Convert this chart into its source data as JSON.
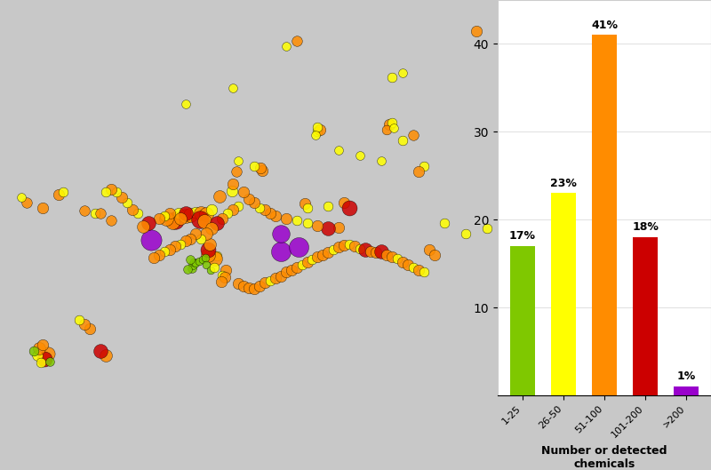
{
  "bar_categories": [
    "1-25",
    "26-50",
    "51-100",
    "101-200",
    ">200"
  ],
  "bar_values": [
    17,
    23,
    41,
    18,
    1
  ],
  "bar_colors": [
    "#7fc800",
    "#ffff00",
    "#ff8c00",
    "#cc0000",
    "#9900cc"
  ],
  "bar_labels": [
    "17%",
    "23%",
    "41%",
    "18%",
    "1%"
  ],
  "circle_colors": [
    "#7fc800",
    "#ffff00",
    "#ff8c00",
    "#cc0000",
    "#9900cc"
  ],
  "circle_sizes": [
    40,
    80,
    130,
    200,
    280
  ],
  "xlabel": "Number or detected\nchemicals",
  "background_color": "#c8c8c8",
  "map_bg": "#c8c8c8",
  "land_color": "#ffffff",
  "border_color": "#aaaaaa",
  "sampling_points": [
    {
      "lon": 2.3,
      "lat": 48.9,
      "color": "#9900cc",
      "size": 280
    },
    {
      "lon": 4.5,
      "lat": 50.8,
      "color": "#cc0000",
      "size": 200
    },
    {
      "lon": 4.3,
      "lat": 50.6,
      "color": "#ff8c00",
      "size": 130
    },
    {
      "lon": 3.7,
      "lat": 51.0,
      "color": "#ff8c00",
      "size": 130
    },
    {
      "lon": 4.9,
      "lat": 51.5,
      "color": "#ffff00",
      "size": 80
    },
    {
      "lon": 5.5,
      "lat": 51.2,
      "color": "#ff8c00",
      "size": 130
    },
    {
      "lon": 6.0,
      "lat": 51.3,
      "color": "#ff8c00",
      "size": 130
    },
    {
      "lon": 6.5,
      "lat": 51.6,
      "color": "#ffff00",
      "size": 80
    },
    {
      "lon": 7.0,
      "lat": 51.5,
      "color": "#ff8c00",
      "size": 130
    },
    {
      "lon": 7.5,
      "lat": 51.4,
      "color": "#ff8c00",
      "size": 130
    },
    {
      "lon": 8.0,
      "lat": 51.8,
      "color": "#ffff00",
      "size": 80
    },
    {
      "lon": 6.9,
      "lat": 50.9,
      "color": "#cc0000",
      "size": 200
    },
    {
      "lon": 7.3,
      "lat": 50.7,
      "color": "#ff8c00",
      "size": 130
    },
    {
      "lon": 8.7,
      "lat": 53.1,
      "color": "#ff8c00",
      "size": 100
    },
    {
      "lon": 9.9,
      "lat": 53.6,
      "color": "#ffff00",
      "size": 80
    },
    {
      "lon": 10.0,
      "lat": 54.3,
      "color": "#ff8c00",
      "size": 80
    },
    {
      "lon": 8.5,
      "lat": 47.4,
      "color": "#ffff00",
      "size": 60
    },
    {
      "lon": 8.3,
      "lat": 47.1,
      "color": "#ff8c00",
      "size": 130
    },
    {
      "lon": 7.6,
      "lat": 47.5,
      "color": "#ff8c00",
      "size": 130
    },
    {
      "lon": 7.6,
      "lat": 48.0,
      "color": "#cc0000",
      "size": 150
    },
    {
      "lon": 7.8,
      "lat": 48.5,
      "color": "#ff8c00",
      "size": 100
    },
    {
      "lon": 6.1,
      "lat": 46.2,
      "color": "#7fc800",
      "size": 50
    },
    {
      "lon": 6.2,
      "lat": 46.5,
      "color": "#7fc800",
      "size": 50
    },
    {
      "lon": 6.3,
      "lat": 46.8,
      "color": "#7fc800",
      "size": 40
    },
    {
      "lon": 6.5,
      "lat": 46.7,
      "color": "#7fc800",
      "size": 40
    },
    {
      "lon": 6.8,
      "lat": 46.9,
      "color": "#7fc800",
      "size": 40
    },
    {
      "lon": 7.1,
      "lat": 47.0,
      "color": "#7fc800",
      "size": 40
    },
    {
      "lon": 7.4,
      "lat": 47.2,
      "color": "#7fc800",
      "size": 40
    },
    {
      "lon": 6.0,
      "lat": 47.0,
      "color": "#7fc800",
      "size": 50
    },
    {
      "lon": 5.7,
      "lat": 46.1,
      "color": "#7fc800",
      "size": 50
    },
    {
      "lon": 7.5,
      "lat": 46.5,
      "color": "#7fc800",
      "size": 40
    },
    {
      "lon": 7.9,
      "lat": 46.0,
      "color": "#7fc800",
      "size": 40
    },
    {
      "lon": 8.2,
      "lat": 46.3,
      "color": "#ffff00",
      "size": 60
    },
    {
      "lon": 9.3,
      "lat": 46.0,
      "color": "#ff8c00",
      "size": 80
    },
    {
      "lon": 9.0,
      "lat": 45.5,
      "color": "#ffff00",
      "size": 60
    },
    {
      "lon": 9.2,
      "lat": 45.3,
      "color": "#ff8c00",
      "size": 80
    },
    {
      "lon": 8.9,
      "lat": 44.9,
      "color": "#ff8c00",
      "size": 80
    },
    {
      "lon": 10.5,
      "lat": 44.7,
      "color": "#ff8c00",
      "size": 80
    },
    {
      "lon": 11.0,
      "lat": 44.5,
      "color": "#ff8c00",
      "size": 80
    },
    {
      "lon": 11.5,
      "lat": 44.3,
      "color": "#ff8c00",
      "size": 80
    },
    {
      "lon": 12.0,
      "lat": 44.2,
      "color": "#ff8c00",
      "size": 80
    },
    {
      "lon": 12.5,
      "lat": 44.5,
      "color": "#ff8c00",
      "size": 80
    },
    {
      "lon": 13.0,
      "lat": 44.8,
      "color": "#ff8c00",
      "size": 80
    },
    {
      "lon": 13.5,
      "lat": 45.0,
      "color": "#ffff00",
      "size": 60
    },
    {
      "lon": 14.0,
      "lat": 45.2,
      "color": "#ff8c00",
      "size": 80
    },
    {
      "lon": 14.5,
      "lat": 45.4,
      "color": "#ff8c00",
      "size": 80
    },
    {
      "lon": 15.0,
      "lat": 45.8,
      "color": "#ff8c00",
      "size": 80
    },
    {
      "lon": 15.5,
      "lat": 46.0,
      "color": "#ff8c00",
      "size": 80
    },
    {
      "lon": 16.0,
      "lat": 46.3,
      "color": "#ff8c00",
      "size": 80
    },
    {
      "lon": 16.5,
      "lat": 46.5,
      "color": "#ffff00",
      "size": 60
    },
    {
      "lon": 17.0,
      "lat": 46.8,
      "color": "#ff8c00",
      "size": 80
    },
    {
      "lon": 17.5,
      "lat": 47.0,
      "color": "#ffff00",
      "size": 60
    },
    {
      "lon": 18.0,
      "lat": 47.3,
      "color": "#ff8c00",
      "size": 80
    },
    {
      "lon": 18.5,
      "lat": 47.5,
      "color": "#ff8c00",
      "size": 80
    },
    {
      "lon": 19.0,
      "lat": 47.7,
      "color": "#ff8c00",
      "size": 80
    },
    {
      "lon": 19.5,
      "lat": 48.0,
      "color": "#ffff00",
      "size": 60
    },
    {
      "lon": 20.0,
      "lat": 48.2,
      "color": "#ff8c00",
      "size": 80
    },
    {
      "lon": 20.5,
      "lat": 48.4,
      "color": "#ff8c00",
      "size": 80
    },
    {
      "lon": 21.0,
      "lat": 48.5,
      "color": "#ffff00",
      "size": 60
    },
    {
      "lon": 21.5,
      "lat": 48.3,
      "color": "#ff8c00",
      "size": 80
    },
    {
      "lon": 22.0,
      "lat": 48.1,
      "color": "#ffff00",
      "size": 60
    },
    {
      "lon": 22.5,
      "lat": 48.0,
      "color": "#cc0000",
      "size": 130
    },
    {
      "lon": 23.0,
      "lat": 47.8,
      "color": "#ff8c00",
      "size": 80
    },
    {
      "lon": 23.5,
      "lat": 47.7,
      "color": "#ff8c00",
      "size": 80
    },
    {
      "lon": 24.0,
      "lat": 47.8,
      "color": "#cc0000",
      "size": 130
    },
    {
      "lon": 24.5,
      "lat": 47.5,
      "color": "#ff8c00",
      "size": 80
    },
    {
      "lon": 25.0,
      "lat": 47.3,
      "color": "#ff8c00",
      "size": 80
    },
    {
      "lon": 25.5,
      "lat": 47.1,
      "color": "#ffff00",
      "size": 60
    },
    {
      "lon": 26.0,
      "lat": 46.8,
      "color": "#ff8c00",
      "size": 80
    },
    {
      "lon": 26.5,
      "lat": 46.5,
      "color": "#ff8c00",
      "size": 80
    },
    {
      "lon": 27.0,
      "lat": 46.3,
      "color": "#ffff00",
      "size": 60
    },
    {
      "lon": 27.5,
      "lat": 46.0,
      "color": "#ff8c00",
      "size": 80
    },
    {
      "lon": 28.0,
      "lat": 45.8,
      "color": "#ffff00",
      "size": 60
    },
    {
      "lon": 14.5,
      "lat": 47.8,
      "color": "#9900cc",
      "size": 250
    },
    {
      "lon": 16.2,
      "lat": 48.2,
      "color": "#9900cc",
      "size": 250
    },
    {
      "lon": 24.8,
      "lat": 60.0,
      "color": "#ff8c00",
      "size": 80
    },
    {
      "lon": 25.0,
      "lat": 60.2,
      "color": "#ffff00",
      "size": 60
    },
    {
      "lon": 24.5,
      "lat": 59.5,
      "color": "#ff8c00",
      "size": 60
    },
    {
      "lon": 25.2,
      "lat": 59.7,
      "color": "#ffff00",
      "size": 50
    },
    {
      "lon": 18.0,
      "lat": 59.3,
      "color": "#ffff00",
      "size": 60
    },
    {
      "lon": 18.2,
      "lat": 59.5,
      "color": "#ff8c00",
      "size": 80
    },
    {
      "lon": 18.0,
      "lat": 59.8,
      "color": "#ffff00",
      "size": 60
    },
    {
      "lon": 17.8,
      "lat": 59.0,
      "color": "#ffff00",
      "size": 50
    },
    {
      "lon": 12.8,
      "lat": 55.6,
      "color": "#ff8c00",
      "size": 80
    },
    {
      "lon": 12.6,
      "lat": 55.8,
      "color": "#ff8c00",
      "size": 80
    },
    {
      "lon": 12.0,
      "lat": 56.0,
      "color": "#ffff00",
      "size": 60
    },
    {
      "lon": 10.5,
      "lat": 56.5,
      "color": "#ffff00",
      "size": 50
    },
    {
      "lon": 10.3,
      "lat": 55.5,
      "color": "#ff8c00",
      "size": 70
    },
    {
      "lon": 16.8,
      "lat": 52.4,
      "color": "#ff8c00",
      "size": 80
    },
    {
      "lon": 17.0,
      "lat": 52.0,
      "color": "#ffff00",
      "size": 60
    },
    {
      "lon": 19.0,
      "lat": 52.2,
      "color": "#ffff00",
      "size": 60
    },
    {
      "lon": 20.5,
      "lat": 52.5,
      "color": "#ff8c00",
      "size": 80
    },
    {
      "lon": 21.0,
      "lat": 52.0,
      "color": "#cc0000",
      "size": 150
    },
    {
      "lon": 20.0,
      "lat": 50.1,
      "color": "#ff8c00",
      "size": 80
    },
    {
      "lon": 19.0,
      "lat": 50.0,
      "color": "#cc0000",
      "size": 130
    },
    {
      "lon": 18.0,
      "lat": 50.3,
      "color": "#ff8c00",
      "size": 80
    },
    {
      "lon": 17.0,
      "lat": 50.5,
      "color": "#ffff00",
      "size": 60
    },
    {
      "lon": 16.0,
      "lat": 50.8,
      "color": "#ffff00",
      "size": 60
    },
    {
      "lon": 15.0,
      "lat": 51.0,
      "color": "#ff8c00",
      "size": 80
    },
    {
      "lon": 14.0,
      "lat": 51.2,
      "color": "#ff8c00",
      "size": 80
    },
    {
      "lon": 13.5,
      "lat": 51.5,
      "color": "#ff8c00",
      "size": 80
    },
    {
      "lon": 13.0,
      "lat": 51.8,
      "color": "#ff8c00",
      "size": 80
    },
    {
      "lon": 12.5,
      "lat": 52.0,
      "color": "#ffff00",
      "size": 60
    },
    {
      "lon": 12.0,
      "lat": 52.5,
      "color": "#ff8c00",
      "size": 80
    },
    {
      "lon": 11.5,
      "lat": 52.8,
      "color": "#ff8c00",
      "size": 80
    },
    {
      "lon": 11.0,
      "lat": 53.5,
      "color": "#ff8c00",
      "size": 80
    },
    {
      "lon": 10.5,
      "lat": 52.2,
      "color": "#ffff00",
      "size": 60
    },
    {
      "lon": 10.0,
      "lat": 51.8,
      "color": "#ff8c00",
      "size": 80
    },
    {
      "lon": 9.5,
      "lat": 51.5,
      "color": "#ffff00",
      "size": 60
    },
    {
      "lon": 9.0,
      "lat": 51.0,
      "color": "#ff8c00",
      "size": 80
    },
    {
      "lon": 8.5,
      "lat": 50.5,
      "color": "#cc0000",
      "size": 130
    },
    {
      "lon": 8.0,
      "lat": 50.0,
      "color": "#ff8c00",
      "size": 100
    },
    {
      "lon": 7.5,
      "lat": 49.5,
      "color": "#ff8c00",
      "size": 100
    },
    {
      "lon": 7.0,
      "lat": 49.0,
      "color": "#ffff00",
      "size": 60
    },
    {
      "lon": 6.5,
      "lat": 49.5,
      "color": "#ff8c00",
      "size": 80
    },
    {
      "lon": 6.0,
      "lat": 49.0,
      "color": "#ff8c00",
      "size": 80
    },
    {
      "lon": 5.5,
      "lat": 48.8,
      "color": "#ff8c00",
      "size": 80
    },
    {
      "lon": 5.0,
      "lat": 48.5,
      "color": "#ffff00",
      "size": 60
    },
    {
      "lon": 4.5,
      "lat": 48.3,
      "color": "#ff8c00",
      "size": 80
    },
    {
      "lon": 4.0,
      "lat": 48.0,
      "color": "#ff8c00",
      "size": 80
    },
    {
      "lon": 3.5,
      "lat": 47.8,
      "color": "#ffff00",
      "size": 60
    },
    {
      "lon": 3.0,
      "lat": 47.5,
      "color": "#ff8c00",
      "size": 80
    },
    {
      "lon": 2.5,
      "lat": 47.2,
      "color": "#ff8c00",
      "size": 80
    },
    {
      "lon": 5.5,
      "lat": 51.5,
      "color": "#cc0000",
      "size": 130
    },
    {
      "lon": 5.0,
      "lat": 51.0,
      "color": "#ff8c00",
      "size": 100
    },
    {
      "lon": 4.0,
      "lat": 51.5,
      "color": "#ff8c00",
      "size": 80
    },
    {
      "lon": 3.5,
      "lat": 51.2,
      "color": "#ffff00",
      "size": 60
    },
    {
      "lon": 3.0,
      "lat": 51.0,
      "color": "#ff8c00",
      "size": 80
    },
    {
      "lon": -7.5,
      "lat": 38.0,
      "color": "#ff8c00",
      "size": 120
    },
    {
      "lon": -7.8,
      "lat": 37.5,
      "color": "#cc0000",
      "size": 150
    },
    {
      "lon": -8.5,
      "lat": 37.8,
      "color": "#ffff00",
      "size": 70
    },
    {
      "lon": -8.3,
      "lat": 38.5,
      "color": "#ff8c00",
      "size": 100
    },
    {
      "lon": -8.8,
      "lat": 38.2,
      "color": "#7fc800",
      "size": 60
    },
    {
      "lon": -8.1,
      "lat": 37.1,
      "color": "#ffff00",
      "size": 60
    },
    {
      "lon": -7.3,
      "lat": 37.2,
      "color": "#7fc800",
      "size": 50
    },
    {
      "lon": -8.0,
      "lat": 38.8,
      "color": "#ff8c00",
      "size": 80
    },
    {
      "lon": -2.0,
      "lat": 37.8,
      "color": "#ff8c00",
      "size": 100
    },
    {
      "lon": -2.5,
      "lat": 38.2,
      "color": "#cc0000",
      "size": 130
    },
    {
      "lon": -3.5,
      "lat": 40.4,
      "color": "#ff8c00",
      "size": 80
    },
    {
      "lon": -4.0,
      "lat": 40.8,
      "color": "#ff8c00",
      "size": 80
    },
    {
      "lon": -4.5,
      "lat": 41.2,
      "color": "#ffff00",
      "size": 60
    },
    {
      "lon": 28.0,
      "lat": 56.0,
      "color": "#ffff00",
      "size": 60
    },
    {
      "lon": 27.5,
      "lat": 55.5,
      "color": "#ff8c00",
      "size": 80
    },
    {
      "lon": 24.0,
      "lat": 56.5,
      "color": "#ffff00",
      "size": 50
    },
    {
      "lon": 22.0,
      "lat": 57.0,
      "color": "#ffff00",
      "size": 50
    },
    {
      "lon": 20.0,
      "lat": 57.5,
      "color": "#ffff00",
      "size": 50
    },
    {
      "lon": 33.0,
      "lat": 69.0,
      "color": "#ff8c00",
      "size": 80
    },
    {
      "lon": 14.5,
      "lat": 49.5,
      "color": "#9900cc",
      "size": 200
    },
    {
      "lon": 2.0,
      "lat": 50.5,
      "color": "#cc0000",
      "size": 130
    },
    {
      "lon": 1.5,
      "lat": 50.2,
      "color": "#ff8c00",
      "size": 100
    },
    {
      "lon": 1.0,
      "lat": 51.5,
      "color": "#ffff00",
      "size": 60
    },
    {
      "lon": 0.5,
      "lat": 51.8,
      "color": "#ff8c00",
      "size": 80
    },
    {
      "lon": 0.0,
      "lat": 52.5,
      "color": "#ffff00",
      "size": 60
    },
    {
      "lon": -0.5,
      "lat": 53.0,
      "color": "#ff8c00",
      "size": 80
    },
    {
      "lon": -1.0,
      "lat": 53.5,
      "color": "#ffff00",
      "size": 60
    },
    {
      "lon": -1.5,
      "lat": 53.8,
      "color": "#ff8c00",
      "size": 80
    },
    {
      "lon": -2.0,
      "lat": 53.5,
      "color": "#ffff00",
      "size": 60
    },
    {
      "lon": -3.0,
      "lat": 51.5,
      "color": "#ffff00",
      "size": 60
    },
    {
      "lon": -4.0,
      "lat": 51.7,
      "color": "#ff8c00",
      "size": 70
    },
    {
      "lon": -2.5,
      "lat": 51.5,
      "color": "#ff8c00",
      "size": 70
    },
    {
      "lon": -1.5,
      "lat": 50.8,
      "color": "#ff8c00",
      "size": 70
    },
    {
      "lon": -8.0,
      "lat": 52.0,
      "color": "#ff8c00",
      "size": 80
    },
    {
      "lon": -6.5,
      "lat": 53.3,
      "color": "#ff8c00",
      "size": 80
    },
    {
      "lon": -6.0,
      "lat": 53.5,
      "color": "#ffff00",
      "size": 60
    },
    {
      "lon": -9.5,
      "lat": 52.5,
      "color": "#ff8c00",
      "size": 70
    },
    {
      "lon": -10.0,
      "lat": 53.0,
      "color": "#ffff00",
      "size": 50
    },
    {
      "lon": 26.0,
      "lat": 58.5,
      "color": "#ffff00",
      "size": 60
    },
    {
      "lon": 27.0,
      "lat": 59.0,
      "color": "#ff8c00",
      "size": 70
    },
    {
      "lon": 25.0,
      "lat": 64.5,
      "color": "#ffff00",
      "size": 60
    },
    {
      "lon": 26.0,
      "lat": 65.0,
      "color": "#ffff00",
      "size": 50
    },
    {
      "lon": 15.0,
      "lat": 67.5,
      "color": "#ffff00",
      "size": 50
    },
    {
      "lon": 16.0,
      "lat": 68.0,
      "color": "#ff8c00",
      "size": 70
    },
    {
      "lon": 10.0,
      "lat": 63.5,
      "color": "#ffff00",
      "size": 50
    },
    {
      "lon": 5.5,
      "lat": 62.0,
      "color": "#ffff00",
      "size": 50
    },
    {
      "lon": 28.5,
      "lat": 48.0,
      "color": "#ff8c00",
      "size": 80
    },
    {
      "lon": 29.0,
      "lat": 47.5,
      "color": "#ff8c00",
      "size": 80
    },
    {
      "lon": 30.0,
      "lat": 50.5,
      "color": "#ffff00",
      "size": 60
    },
    {
      "lon": 32.0,
      "lat": 49.5,
      "color": "#ffff00",
      "size": 60
    },
    {
      "lon": 34.0,
      "lat": 50.0,
      "color": "#ffff00",
      "size": 60
    }
  ]
}
